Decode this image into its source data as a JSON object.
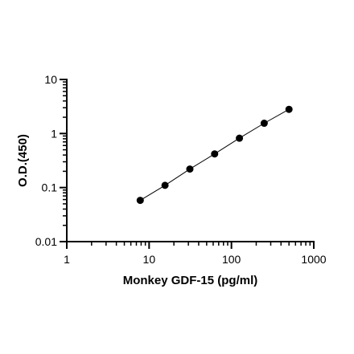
{
  "chart_data": {
    "type": "scatter",
    "title": "",
    "xlabel": "Monkey GDF-15 (pg/ml)",
    "ylabel": "O.D.(450)",
    "x_scale": "log",
    "y_scale": "log",
    "xlim": [
      1,
      1000
    ],
    "ylim": [
      0.01,
      10
    ],
    "x_ticks": [
      {
        "value": 1,
        "label": "1"
      },
      {
        "value": 10,
        "label": "10"
      },
      {
        "value": 100,
        "label": "100"
      },
      {
        "value": 1000,
        "label": "1000"
      }
    ],
    "y_ticks": [
      {
        "value": 0.01,
        "label": "0.01"
      },
      {
        "value": 0.1,
        "label": "0.1"
      },
      {
        "value": 1,
        "label": "1"
      },
      {
        "value": 10,
        "label": "10"
      }
    ],
    "grid": false,
    "legend": false,
    "series": [
      {
        "x": [
          7.8,
          15.6,
          31.25,
          62.5,
          125,
          250,
          500
        ],
        "y": [
          0.058,
          0.11,
          0.22,
          0.42,
          0.82,
          1.55,
          2.8
        ],
        "fit_line": true,
        "color": "#000000"
      }
    ]
  }
}
